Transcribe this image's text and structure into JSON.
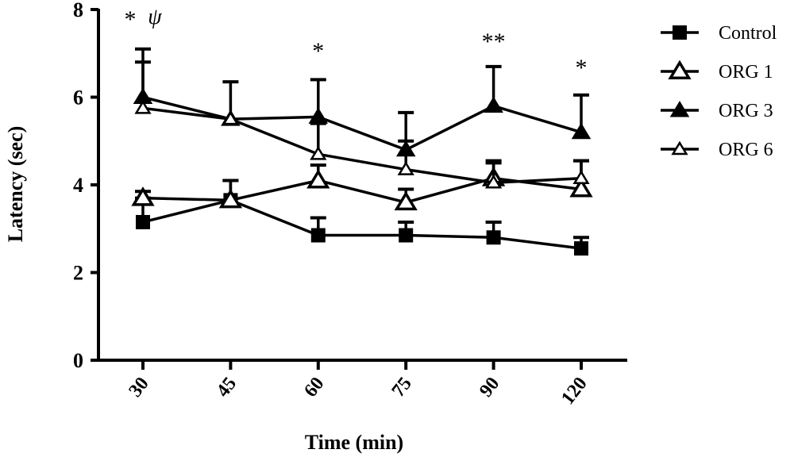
{
  "chart_data": {
    "type": "line",
    "xlabel": "Time (min)",
    "ylabel": "Latency (sec)",
    "categories": [
      "30",
      "45",
      "60",
      "75",
      "90",
      "120"
    ],
    "ylim": [
      0,
      8
    ],
    "yticks": [
      0,
      2,
      4,
      6,
      8
    ],
    "legend_position": "right",
    "grid": false,
    "series": [
      {
        "name": "Control",
        "marker": "square-filled",
        "values": [
          3.15,
          3.65,
          2.85,
          2.85,
          2.8,
          2.55
        ],
        "errors": [
          0.55,
          0.45,
          0.4,
          0.3,
          0.35,
          0.25
        ]
      },
      {
        "name": "ORG 1",
        "marker": "triangle-open-large",
        "values": [
          3.7,
          3.65,
          4.1,
          3.6,
          4.15,
          3.9
        ],
        "errors": [
          0.15,
          0.45,
          0.35,
          0.3,
          0.35,
          0.65
        ]
      },
      {
        "name": "ORG 3",
        "marker": "triangle-filled",
        "values": [
          6.0,
          5.5,
          5.55,
          4.8,
          5.8,
          5.2
        ],
        "errors": [
          1.1,
          0.85,
          0.85,
          0.85,
          0.9,
          0.85
        ]
      },
      {
        "name": "ORG 6",
        "marker": "triangle-open-small",
        "values": [
          5.75,
          5.5,
          4.7,
          4.35,
          4.05,
          4.15
        ],
        "errors": [
          1.05,
          0.0,
          0.7,
          0.65,
          0.5,
          0.4
        ]
      }
    ],
    "annotations": [
      {
        "category": "30",
        "text": "*"
      },
      {
        "category": "30",
        "text": "ψ"
      },
      {
        "category": "60",
        "text": "*"
      },
      {
        "category": "90",
        "text": "**"
      },
      {
        "category": "120",
        "text": "*"
      }
    ]
  }
}
